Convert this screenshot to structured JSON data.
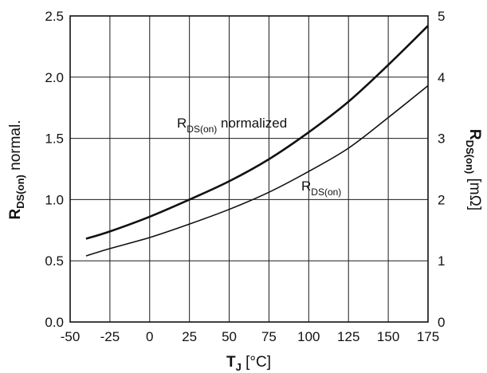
{
  "chart_data": {
    "type": "line",
    "xlabel": {
      "main": "T",
      "sub": "J",
      "unit": "  [°C]"
    },
    "ylabel_left": {
      "main": "R",
      "sub": "DS(on)",
      "unit": " normal."
    },
    "ylabel_right": {
      "main": "R",
      "sub": "DS(on)",
      "unit": " [mΩ]"
    },
    "x_ticks": [
      -50,
      -25,
      0,
      25,
      50,
      75,
      100,
      125,
      150,
      175
    ],
    "y_left_ticks": [
      "0.0",
      "0.5",
      "1.0",
      "1.5",
      "2.0",
      "2.5"
    ],
    "y_right_ticks": [
      "0",
      "1",
      "2",
      "3",
      "4",
      "5"
    ],
    "xlim": [
      -50,
      175
    ],
    "ylim_left": [
      0,
      2.5
    ],
    "ylim_right": [
      0,
      5
    ],
    "grid": true,
    "series": [
      {
        "name": "RDS(on) normalized",
        "label": {
          "main": "R",
          "sub": "DS(on)",
          "rest": " normalized"
        },
        "axis": "left",
        "x": [
          -40,
          -25,
          0,
          25,
          50,
          75,
          100,
          125,
          150,
          175
        ],
        "y": [
          0.68,
          0.74,
          0.86,
          1.0,
          1.15,
          1.33,
          1.55,
          1.8,
          2.1,
          2.42
        ]
      },
      {
        "name": "RDS(on)",
        "label": {
          "main": "R",
          "sub": "DS(on)",
          "rest": ""
        },
        "axis": "right",
        "x": [
          -40,
          -25,
          0,
          25,
          50,
          75,
          100,
          125,
          150,
          175
        ],
        "y": [
          1.08,
          1.2,
          1.38,
          1.6,
          1.84,
          2.12,
          2.46,
          2.84,
          3.34,
          3.86
        ]
      }
    ]
  }
}
